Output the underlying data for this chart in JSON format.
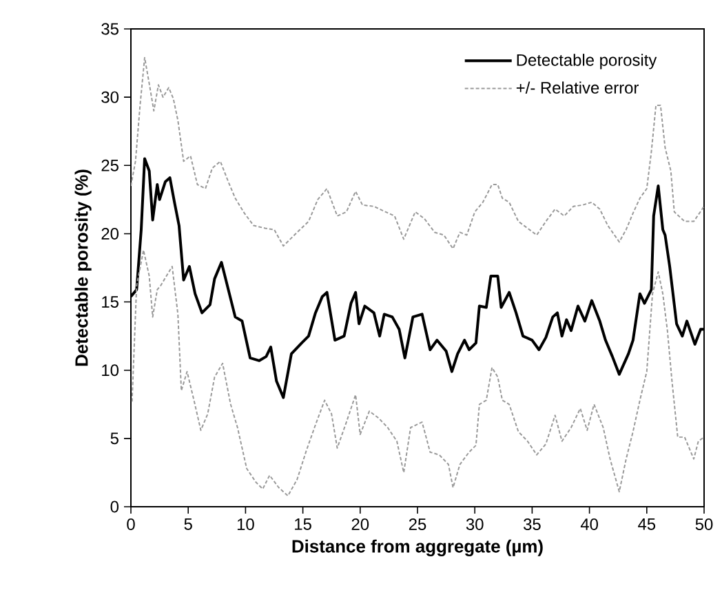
{
  "chart_data": {
    "type": "line",
    "xlabel": "Distance from aggregate (µm)",
    "ylabel": "Detectable porosity (%)",
    "xlim": [
      0,
      50
    ],
    "ylim": [
      0,
      35
    ],
    "xticks": [
      0,
      5,
      10,
      15,
      20,
      25,
      30,
      35,
      40,
      45,
      50
    ],
    "yticks": [
      0,
      5,
      10,
      15,
      20,
      25,
      30,
      35
    ],
    "grid": false,
    "legend": "top right",
    "marker": "none",
    "series": [
      {
        "name": "Detectable porosity",
        "color": "#000000",
        "line_style": "solid",
        "x": [
          0,
          0.5,
          0.9,
          1.2,
          1.6,
          1.9,
          2.3,
          2.5,
          3.0,
          3.4,
          3.8,
          4.2,
          4.6,
          5.1,
          5.6,
          6.2,
          6.9,
          7.3,
          7.9,
          8.5,
          9.1,
          9.7,
          10.4,
          11.2,
          11.8,
          12.2,
          12.7,
          13.3,
          14.0,
          14.9,
          15.5,
          16.1,
          16.7,
          17.1,
          17.8,
          18.6,
          19.2,
          19.6,
          19.9,
          20.4,
          21.2,
          21.7,
          22.1,
          22.8,
          23.4,
          23.9,
          24.6,
          25.4,
          26.1,
          26.7,
          27.5,
          28.0,
          28.5,
          29.1,
          29.5,
          30.1,
          30.4,
          31.0,
          31.4,
          32.0,
          32.3,
          33.0,
          33.6,
          34.2,
          35.0,
          35.6,
          36.2,
          36.8,
          37.2,
          37.6,
          38.0,
          38.4,
          39.0,
          39.6,
          40.2,
          40.9,
          41.4,
          42.0,
          42.6,
          43.4,
          43.8,
          44.4,
          44.8,
          45.4,
          45.6,
          46.0,
          46.4,
          46.6,
          47.0,
          47.6,
          48.1,
          48.5,
          49.2,
          49.7,
          50.0
        ],
        "values": [
          15.4,
          15.9,
          20.3,
          25.5,
          24.6,
          21.0,
          23.6,
          22.5,
          23.8,
          24.1,
          22.3,
          20.6,
          16.6,
          17.6,
          15.6,
          14.2,
          14.8,
          16.7,
          17.9,
          15.9,
          13.9,
          13.6,
          10.9,
          10.7,
          11.0,
          11.7,
          9.2,
          8.0,
          11.2,
          12.0,
          12.5,
          14.2,
          15.4,
          15.7,
          12.2,
          12.5,
          14.9,
          15.7,
          13.4,
          14.7,
          14.2,
          12.5,
          14.1,
          13.9,
          13.0,
          10.9,
          13.9,
          14.1,
          11.5,
          12.2,
          11.4,
          9.9,
          11.2,
          12.2,
          11.5,
          12.0,
          14.7,
          14.6,
          16.9,
          16.9,
          14.6,
          15.7,
          14.2,
          12.5,
          12.2,
          11.5,
          12.4,
          13.9,
          14.2,
          12.5,
          13.7,
          12.9,
          14.7,
          13.6,
          15.1,
          13.6,
          12.2,
          11.0,
          9.7,
          11.2,
          12.2,
          15.6,
          14.9,
          15.9,
          21.3,
          23.5,
          20.3,
          19.9,
          17.6,
          13.4,
          12.5,
          13.6,
          11.9,
          13.0,
          13.0
        ]
      },
      {
        "name": "+/- Relative error",
        "color": "#999999",
        "line_style": "dashed",
        "x": [
          0,
          0.4,
          0.8,
          1.2,
          1.6,
          2.0,
          2.4,
          2.8,
          3.3,
          3.7,
          4.1,
          4.6,
          5.2,
          5.8,
          6.5,
          7.1,
          7.8,
          8.5,
          9.1,
          9.9,
          10.7,
          11.7,
          12.5,
          13.3,
          14.5,
          15.5,
          16.3,
          17.1,
          18.0,
          18.8,
          19.6,
          20.2,
          21.2,
          22.2,
          23.0,
          23.8,
          24.8,
          25.6,
          26.5,
          27.3,
          28.1,
          28.7,
          29.3,
          30.0,
          30.7,
          31.5,
          32.0,
          32.4,
          33.0,
          33.8,
          34.6,
          35.4,
          36.2,
          37.0,
          37.8,
          38.6,
          39.4,
          40.2,
          40.9,
          41.6,
          42.6,
          43.2,
          43.8,
          44.4,
          45.0,
          45.4,
          45.8,
          46.2,
          46.6,
          47.1,
          47.4,
          48.3,
          49.1,
          50.0
        ],
        "values": [
          23.5,
          25.3,
          29.4,
          32.9,
          31.0,
          29.0,
          30.9,
          30.0,
          30.7,
          29.9,
          28.3,
          25.3,
          25.7,
          23.6,
          23.3,
          24.8,
          25.3,
          23.8,
          22.6,
          21.5,
          20.6,
          20.4,
          20.3,
          19.1,
          20.1,
          20.9,
          22.5,
          23.3,
          21.3,
          21.6,
          23.1,
          22.1,
          22.0,
          21.6,
          21.3,
          19.6,
          21.6,
          21.1,
          20.1,
          19.9,
          18.9,
          20.1,
          19.9,
          21.6,
          22.3,
          23.6,
          23.6,
          22.6,
          22.3,
          20.9,
          20.4,
          19.9,
          20.9,
          21.8,
          21.3,
          22.0,
          22.1,
          22.3,
          21.8,
          20.6,
          19.4,
          20.3,
          21.5,
          22.6,
          23.3,
          26.0,
          29.4,
          29.4,
          26.3,
          24.6,
          21.6,
          20.9,
          20.9,
          22.0
        ]
      },
      {
        "color": "#999999",
        "line_style": "dashed",
        "x": [
          0.1,
          0.5,
          1.1,
          1.6,
          1.9,
          2.3,
          2.6,
          3.1,
          3.6,
          4.1,
          4.4,
          4.9,
          5.5,
          6.1,
          6.7,
          7.3,
          8.0,
          8.7,
          9.3,
          10.1,
          10.9,
          11.5,
          12.1,
          12.9,
          13.7,
          14.5,
          15.3,
          16.1,
          16.9,
          17.5,
          18.0,
          18.8,
          19.6,
          20.0,
          20.8,
          21.6,
          22.4,
          23.2,
          23.8,
          24.4,
          25.4,
          26.1,
          26.9,
          27.7,
          28.1,
          28.7,
          29.5,
          30.1,
          30.4,
          31.0,
          31.5,
          32.0,
          32.4,
          33.0,
          33.8,
          34.6,
          35.4,
          36.2,
          37.0,
          37.6,
          38.4,
          39.2,
          39.8,
          40.4,
          41.2,
          41.8,
          42.6,
          43.2,
          43.8,
          44.4,
          45.0,
          45.5,
          46.0,
          46.4,
          46.8,
          47.2,
          47.7,
          48.3,
          49.1,
          49.5,
          50.0
        ],
        "values": [
          7.7,
          16.2,
          18.8,
          16.9,
          13.9,
          15.9,
          16.2,
          16.9,
          17.6,
          14.1,
          8.5,
          9.9,
          7.8,
          5.6,
          6.8,
          9.5,
          10.5,
          7.5,
          5.8,
          2.8,
          1.8,
          1.3,
          2.3,
          1.4,
          0.8,
          2.0,
          4.1,
          6.0,
          7.8,
          6.8,
          4.3,
          6.2,
          8.2,
          5.3,
          7.0,
          6.5,
          5.8,
          4.8,
          2.5,
          5.8,
          6.2,
          4.0,
          3.8,
          3.1,
          1.4,
          3.1,
          4.0,
          4.5,
          7.5,
          7.8,
          10.2,
          9.5,
          7.8,
          7.5,
          5.5,
          4.8,
          3.8,
          4.6,
          6.7,
          4.8,
          5.8,
          7.2,
          5.6,
          7.5,
          5.8,
          3.5,
          1.1,
          3.5,
          5.5,
          7.8,
          9.9,
          15.6,
          17.2,
          15.6,
          12.9,
          9.2,
          5.1,
          5.1,
          3.5,
          4.8,
          5.1
        ]
      }
    ]
  }
}
